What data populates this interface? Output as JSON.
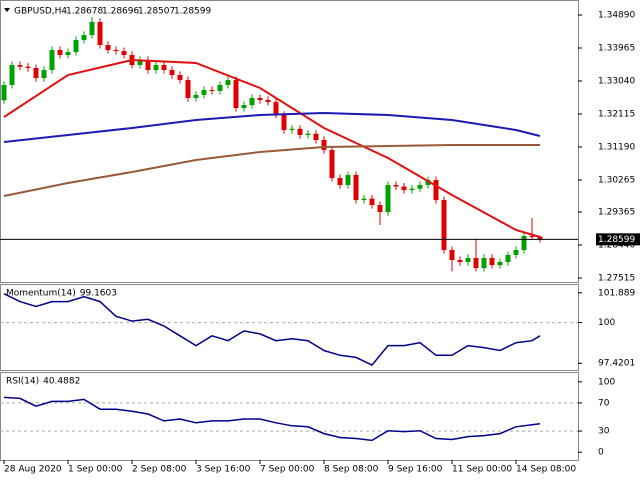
{
  "chart_data": [
    {
      "type": "candlestick",
      "title": "GBPUSD,H4",
      "up_color": "#00a000",
      "down_color": "#e00000",
      "ylim": [
        1.27403,
        1.35255
      ],
      "yticks": [
        {
          "value": 1.3489,
          "label": "1.34890"
        },
        {
          "value": 1.33965,
          "label": "1.33965"
        },
        {
          "value": 1.3304,
          "label": "1.33040"
        },
        {
          "value": 1.32115,
          "label": "1.32115"
        },
        {
          "value": 1.3119,
          "label": "1.31190"
        },
        {
          "value": 1.30265,
          "label": "1.30265"
        },
        {
          "value": 1.29365,
          "label": "1.29365"
        },
        {
          "value": 1.2844,
          "label": "1.28440"
        },
        {
          "value": 1.27515,
          "label": "1.27515"
        }
      ],
      "xlim": [
        -0.5,
        71.75
      ],
      "xticks": [
        {
          "value": 0,
          "label": "28 Aug 2020"
        },
        {
          "value": 8,
          "label": "1 Sep 00:00"
        },
        {
          "value": 16,
          "label": "2 Sep 08:00"
        },
        {
          "value": 24,
          "label": "3 Sep 16:00"
        },
        {
          "value": 32,
          "label": "7 Sep 00:00"
        },
        {
          "value": 40,
          "label": "8 Sep 08:00"
        },
        {
          "value": 48,
          "label": "9 Sep 16:00"
        },
        {
          "value": 56,
          "label": "11 Sep 00:00"
        },
        {
          "value": 64,
          "label": "14 Sep 08:00"
        }
      ],
      "ohlc": [
        [
          1.325,
          1.3303,
          1.324,
          1.32927
        ],
        [
          1.32927,
          1.3359,
          1.3283,
          1.33488
        ],
        [
          1.33488,
          1.3359,
          1.3334,
          1.3344
        ],
        [
          1.3344,
          1.3354,
          1.333,
          1.33404
        ],
        [
          1.33404,
          1.335,
          1.3302,
          1.33123
        ],
        [
          1.33123,
          1.3345,
          1.3302,
          1.33348
        ],
        [
          1.33348,
          1.3401,
          1.3325,
          1.33909
        ],
        [
          1.33909,
          1.3401,
          1.3367,
          1.33768
        ],
        [
          1.33768,
          1.3395,
          1.3367,
          1.33852
        ],
        [
          1.33852,
          1.3429,
          1.3375,
          1.34189
        ],
        [
          1.34189,
          1.3443,
          1.3409,
          1.34329
        ],
        [
          1.34329,
          1.3483,
          1.3423,
          1.34694
        ],
        [
          1.34694,
          1.348,
          1.3395,
          1.34049
        ],
        [
          1.34049,
          1.3415,
          1.3381,
          1.33909
        ],
        [
          1.33909,
          1.3401,
          1.3378,
          1.3388
        ],
        [
          1.3388,
          1.3398,
          1.3367,
          1.33768
        ],
        [
          1.33768,
          1.3387,
          1.3339,
          1.33488
        ],
        [
          1.33488,
          1.3373,
          1.3339,
          1.33628
        ],
        [
          1.33628,
          1.3373,
          1.3325,
          1.33348
        ],
        [
          1.33348,
          1.3359,
          1.3325,
          1.33488
        ],
        [
          1.33488,
          1.3359,
          1.3325,
          1.33348
        ],
        [
          1.33348,
          1.3345,
          1.331,
          1.33207
        ],
        [
          1.33207,
          1.3331,
          1.3297,
          1.33067
        ],
        [
          1.33067,
          1.3317,
          1.3246,
          1.32563
        ],
        [
          1.32563,
          1.3275,
          1.3246,
          1.32647
        ],
        [
          1.32647,
          1.3289,
          1.3255,
          1.32787
        ],
        [
          1.32787,
          1.3289,
          1.3266,
          1.3276
        ],
        [
          1.3276,
          1.3303,
          1.3266,
          1.32927
        ],
        [
          1.32927,
          1.3317,
          1.3283,
          1.33067
        ],
        [
          1.33067,
          1.3317,
          1.3218,
          1.32282
        ],
        [
          1.32282,
          1.3247,
          1.3218,
          1.32366
        ],
        [
          1.32366,
          1.3266,
          1.3227,
          1.32563
        ],
        [
          1.32563,
          1.3266,
          1.324,
          1.32506
        ],
        [
          1.32506,
          1.3261,
          1.3235,
          1.3245
        ],
        [
          1.3245,
          1.3255,
          1.3199,
          1.32086
        ],
        [
          1.32086,
          1.3219,
          1.3156,
          1.31665
        ],
        [
          1.31665,
          1.318,
          1.3156,
          1.317
        ],
        [
          1.317,
          1.318,
          1.3142,
          1.31525
        ],
        [
          1.31525,
          1.3166,
          1.3142,
          1.3156
        ],
        [
          1.3156,
          1.3166,
          1.3128,
          1.31385
        ],
        [
          1.31385,
          1.3149,
          1.31,
          1.31104
        ],
        [
          1.31104,
          1.312,
          1.3022,
          1.30319
        ],
        [
          1.30319,
          1.3042,
          1.3002,
          1.30123
        ],
        [
          1.30123,
          1.305,
          1.3002,
          1.30403
        ],
        [
          1.30403,
          1.305,
          1.296,
          1.29702
        ],
        [
          1.29702,
          1.2984,
          1.296,
          1.2974
        ],
        [
          1.2974,
          1.2984,
          1.2946,
          1.29562
        ],
        [
          1.29562,
          1.2966,
          1.29,
          1.29366
        ],
        [
          1.29366,
          1.3022,
          1.2926,
          1.30123
        ],
        [
          1.30123,
          1.3022,
          1.2998,
          1.3008
        ],
        [
          1.3008,
          1.3018,
          1.2988,
          1.29983
        ],
        [
          1.29983,
          1.3012,
          1.2988,
          1.3002
        ],
        [
          1.3002,
          1.3022,
          1.2992,
          1.30123
        ],
        [
          1.30123,
          1.3036,
          1.3002,
          1.30263
        ],
        [
          1.30263,
          1.3036,
          1.296,
          1.29702
        ],
        [
          1.29702,
          1.298,
          1.282,
          1.283
        ],
        [
          1.283,
          1.284,
          1.277,
          1.2802
        ],
        [
          1.2802,
          1.2812,
          1.2786,
          1.27964
        ],
        [
          1.27964,
          1.2818,
          1.2786,
          1.28076
        ],
        [
          1.28076,
          1.2862,
          1.277,
          1.27795
        ],
        [
          1.27795,
          1.2818,
          1.277,
          1.28076
        ],
        [
          1.28076,
          1.2818,
          1.2778,
          1.27879
        ],
        [
          1.27879,
          1.2806,
          1.2778,
          1.27964
        ],
        [
          1.27964,
          1.2826,
          1.2786,
          1.2816
        ],
        [
          1.2816,
          1.284,
          1.2806,
          1.283
        ],
        [
          1.283,
          1.2879,
          1.282,
          1.28693
        ],
        [
          1.28693,
          1.29197,
          1.2859,
          1.28678
        ],
        [
          1.28678,
          1.28696,
          1.28507,
          1.28599
        ]
      ],
      "series": [
        {
          "color": "#e01010",
          "x": [
            0,
            8,
            16,
            24,
            32,
            40,
            48,
            56,
            64,
            67
          ],
          "values": [
            1.3203,
            1.33207,
            1.33628,
            1.33544,
            1.32843,
            1.31721,
            1.3088,
            1.29842,
            1.28861,
            1.28665
          ]
        },
        {
          "color": "#1c1cb4",
          "x": [
            0,
            8,
            16,
            24,
            32,
            40,
            48,
            56,
            64,
            67
          ],
          "values": [
            1.31329,
            1.31525,
            1.31721,
            1.31946,
            1.32086,
            1.32142,
            1.32086,
            1.31946,
            1.31665,
            1.31497
          ]
        },
        {
          "color": "#9a5a3a",
          "x": [
            0,
            8,
            16,
            24,
            32,
            40,
            48,
            56,
            64,
            67
          ],
          "values": [
            1.29814,
            1.30179,
            1.30487,
            1.30824,
            1.31048,
            1.31188,
            1.31217,
            1.31245,
            1.31245,
            1.31245
          ]
        }
      ]
    },
    {
      "type": "line",
      "title": "Momentum(14)",
      "ylim": [
        96.99,
        102.32
      ],
      "yticks": [
        101.889,
        100,
        97.4201
      ],
      "levels": [
        100
      ],
      "series": [
        {
          "color": "#00008b",
          "x": [
            0,
            2,
            4,
            6,
            8,
            10,
            12,
            14,
            16,
            18,
            20,
            22,
            24,
            26,
            28,
            30,
            32,
            34,
            36,
            38,
            40,
            42,
            44,
            46,
            48,
            50,
            52,
            54,
            56,
            58,
            60,
            62,
            64,
            66,
            67
          ],
          "values": [
            101.83,
            101.33,
            101.02,
            101.33,
            101.33,
            101.64,
            101.33,
            100.4,
            100.09,
            100.21,
            99.78,
            99.16,
            98.54,
            99.16,
            98.85,
            99.47,
            99.28,
            98.85,
            98.97,
            98.85,
            98.23,
            97.92,
            97.79,
            97.3,
            98.54,
            98.54,
            98.72,
            97.92,
            97.92,
            98.54,
            98.41,
            98.23,
            98.72,
            98.85,
            99.1603
          ]
        }
      ]
    },
    {
      "type": "line",
      "title": "RSI(14)",
      "ylim": [
        -11.1,
        111.1
      ],
      "yticks": [
        100,
        70,
        30,
        0
      ],
      "levels": [
        70,
        30
      ],
      "series": [
        {
          "color": "#00008b",
          "x": [
            0,
            2,
            4,
            6,
            8,
            10,
            12,
            14,
            16,
            18,
            20,
            22,
            24,
            26,
            28,
            30,
            32,
            34,
            36,
            38,
            40,
            42,
            44,
            46,
            48,
            50,
            52,
            54,
            56,
            58,
            60,
            62,
            64,
            66,
            67
          ],
          "values": [
            77.8,
            76.4,
            65.3,
            72.2,
            72.2,
            75.0,
            61.1,
            61.1,
            58.3,
            54.2,
            44.4,
            47.2,
            41.7,
            44.4,
            44.4,
            47.2,
            47.2,
            41.7,
            37.5,
            36.1,
            26.4,
            20.8,
            19.4,
            16.7,
            30.6,
            29.2,
            30.6,
            19.4,
            18.1,
            22.2,
            23.6,
            26.4,
            36.1,
            38.9,
            40.4882
          ]
        }
      ]
    }
  ]
}
